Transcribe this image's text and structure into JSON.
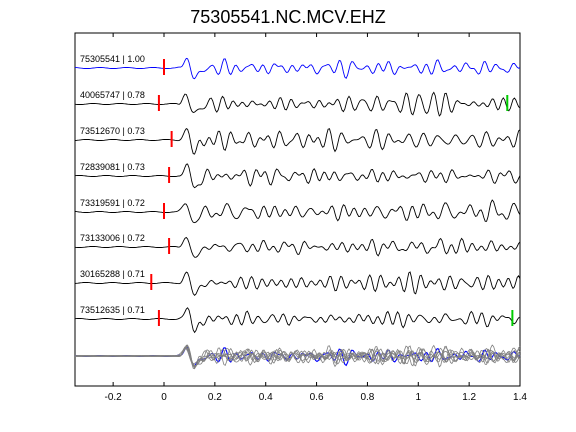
{
  "chart_data": {
    "type": "line",
    "title": "75305541.NC.MCV.EHZ",
    "xlabel": "",
    "ylabel": "",
    "xlim": [
      -0.35,
      1.4
    ],
    "x_ticks": [
      "-0.2",
      "0",
      "0.2",
      "0.4",
      "0.6",
      "0.8",
      "1",
      "1.2",
      "1.4"
    ],
    "x_tick_values": [
      -0.2,
      0,
      0.2,
      0.4,
      0.6,
      0.8,
      1.0,
      1.2,
      1.4
    ],
    "grid": false,
    "trace_labels": [
      "75305541 | 1.00",
      "40065747 | 0.78",
      "73512670 | 0.73",
      "72839081 | 0.73",
      "73319591 | 0.72",
      "73133006 | 0.72",
      "30165288 | 0.71",
      "73512635 | 0.71"
    ],
    "red_pick_times": [
      0.0,
      -0.02,
      0.03,
      0.02,
      0.0,
      0.02,
      -0.05,
      -0.02
    ],
    "green_pick_times": [
      null,
      1.35,
      null,
      null,
      null,
      null,
      null,
      1.37
    ],
    "colors": {
      "reference_trace": "#0000ff",
      "traces": "#000000",
      "stack_traces": "#808080",
      "red_pick": "#ff0000",
      "green_pick": "#00cc00"
    }
  }
}
